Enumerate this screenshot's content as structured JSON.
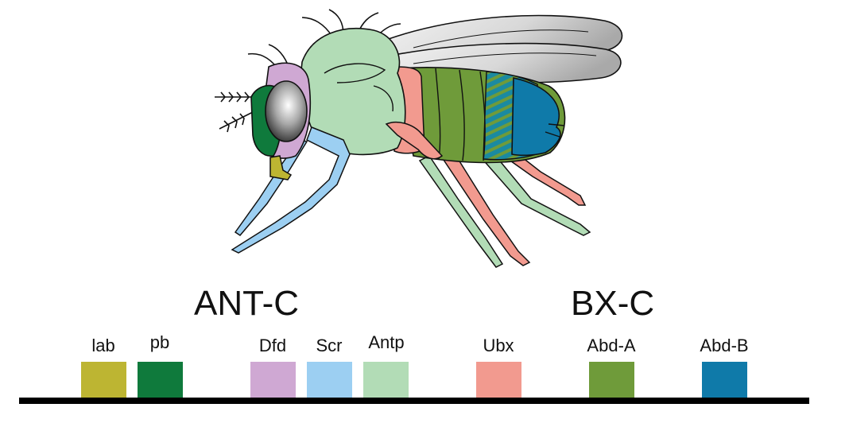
{
  "clusters": {
    "ant_c": "ANT-C",
    "bx_c": "BX-C"
  },
  "genes": [
    {
      "label": "lab",
      "color": "#bdb532"
    },
    {
      "label": "pb",
      "color": "#0f7a3c"
    },
    {
      "label": "Dfd",
      "color": "#cfa8d3"
    },
    {
      "label": "Scr",
      "color": "#9ccff2"
    },
    {
      "label": "Antp",
      "color": "#b2dcb6"
    },
    {
      "label": "Ubx",
      "color": "#f29a8f"
    },
    {
      "label": "Abd-A",
      "color": "#6f9b3a"
    },
    {
      "label": "Abd-B",
      "color": "#0f7aa9"
    }
  ]
}
